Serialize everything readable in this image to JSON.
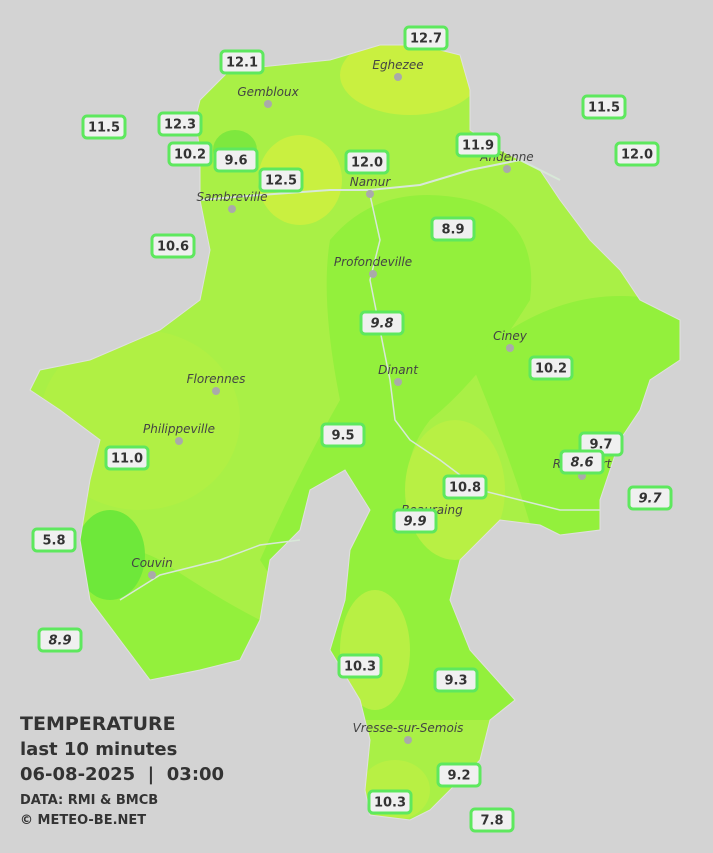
{
  "title": "TEMPERATURE",
  "subtitle": "last 10 minutes",
  "datetime": "06-08-2025  |  03:00",
  "source": "DATA: RMI & BMCB",
  "credit": "© METEO-BE.NET",
  "cities": [
    "Eghezee",
    "Gembloux",
    "Andenne",
    "Namur",
    "Sambreville",
    "Profondeville",
    "Ciney",
    "Dinant",
    "Florennes",
    "Philippeville",
    "Rochefort",
    "Beauraing",
    "Couvin",
    "Vresse-sur-Semois"
  ],
  "stations": [
    "12.7",
    "12.1",
    "11.5",
    "11.5",
    "12.3",
    "11.9",
    "10.2",
    "9.6",
    "12.0",
    "12.0",
    "12.5",
    "8.9",
    "10.6",
    "9.8",
    "10.2",
    "9.5",
    "9.7",
    "8.6",
    "11.0",
    "10.8",
    "9.7",
    "9.9",
    "5.8",
    "8.9",
    "10.3",
    "9.3",
    "9.2",
    "10.3",
    "7.8"
  ]
}
